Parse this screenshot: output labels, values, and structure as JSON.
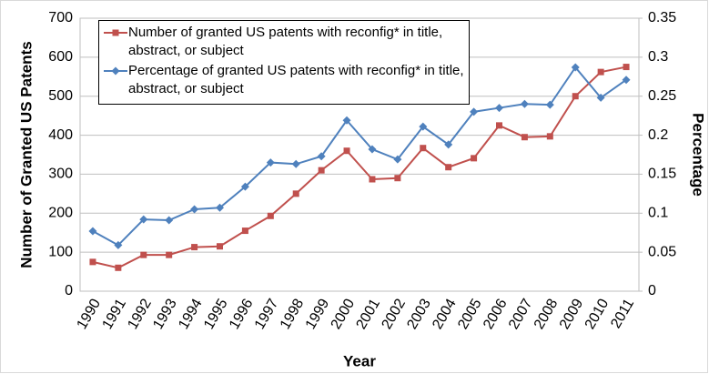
{
  "chart_data": {
    "type": "line",
    "categories": [
      "1990",
      "1991",
      "1992",
      "1993",
      "1994",
      "1995",
      "1996",
      "1997",
      "1998",
      "1999",
      "2000",
      "2001",
      "2002",
      "2003",
      "2004",
      "2005",
      "2006",
      "2007",
      "2008",
      "2009",
      "2010",
      "2011"
    ],
    "series": [
      {
        "name": "Number of granted US patents with reconfig* in title, abstract, or subject",
        "color": "#c0504d",
        "marker": "square",
        "values": [
          75,
          60,
          93,
          93,
          113,
          115,
          155,
          193,
          250,
          310,
          360,
          287,
          290,
          367,
          318,
          341,
          425,
          395,
          397,
          500,
          562,
          575
        ]
      },
      {
        "name": "Percentage of granted US patents with reconfig* in title, abstract, or subject",
        "color": "#4f81bd",
        "marker": "diamond",
        "axis": "y2",
        "values": [
          0.077,
          0.059,
          0.092,
          0.091,
          0.105,
          0.107,
          0.134,
          0.165,
          0.163,
          0.173,
          0.219,
          0.182,
          0.169,
          0.211,
          0.188,
          0.23,
          0.235,
          0.24,
          0.239,
          0.287,
          0.248,
          0.271
        ]
      }
    ],
    "xlabel": "Year",
    "ylabel": "Number of Granted US Patents",
    "y2label": "Percentage",
    "ylim": [
      0,
      700
    ],
    "yticks": [
      0,
      100,
      200,
      300,
      400,
      500,
      600,
      700
    ],
    "y2lim": [
      0,
      0.35
    ],
    "y2ticks": [
      0,
      0.05,
      0.1,
      0.15,
      0.2,
      0.25,
      0.3,
      0.35
    ],
    "grid": true,
    "legend": "upper left"
  }
}
